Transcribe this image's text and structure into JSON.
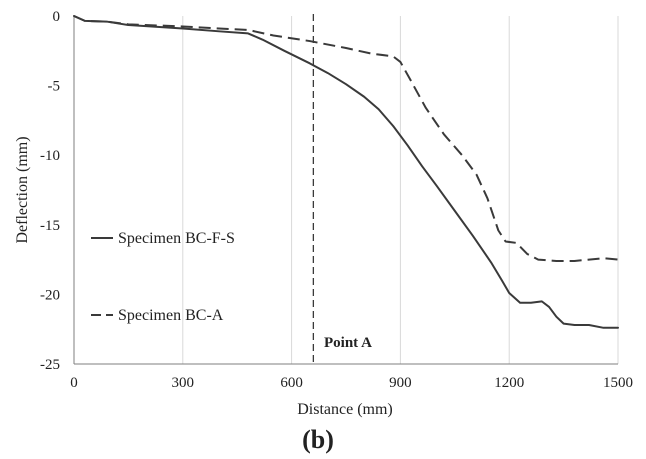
{
  "chart_data": {
    "type": "line",
    "xlabel": "Distance (mm)",
    "ylabel": "Deflection (mm)",
    "xlim": [
      0,
      1500
    ],
    "ylim": [
      -25,
      0
    ],
    "xticks": [
      0,
      300,
      600,
      900,
      1200,
      1500
    ],
    "yticks": [
      0,
      -5,
      -10,
      -15,
      -20,
      -25
    ],
    "x_tick_labels": [
      "0",
      "300",
      "600",
      "900",
      "1200",
      "1500"
    ],
    "y_tick_labels": [
      "0",
      "-5",
      "-10",
      "-15",
      "-20",
      "-25"
    ],
    "grid": "vertical",
    "legend_placement": "left",
    "series": [
      {
        "name": "Specimen BC-F-S",
        "style": "solid",
        "color": "#3a3a3a",
        "points": [
          [
            0,
            0
          ],
          [
            30,
            -0.35
          ],
          [
            90,
            -0.4
          ],
          [
            150,
            -0.65
          ],
          [
            300,
            -0.9
          ],
          [
            400,
            -1.1
          ],
          [
            480,
            -1.25
          ],
          [
            520,
            -1.7
          ],
          [
            580,
            -2.5
          ],
          [
            650,
            -3.4
          ],
          [
            700,
            -4.1
          ],
          [
            750,
            -4.9
          ],
          [
            800,
            -5.8
          ],
          [
            840,
            -6.7
          ],
          [
            880,
            -7.9
          ],
          [
            920,
            -9.3
          ],
          [
            960,
            -10.8
          ],
          [
            1000,
            -12.2
          ],
          [
            1050,
            -14.0
          ],
          [
            1100,
            -15.8
          ],
          [
            1150,
            -17.7
          ],
          [
            1180,
            -19.0
          ],
          [
            1200,
            -19.9
          ],
          [
            1230,
            -20.6
          ],
          [
            1260,
            -20.6
          ],
          [
            1290,
            -20.5
          ],
          [
            1310,
            -20.9
          ],
          [
            1330,
            -21.6
          ],
          [
            1350,
            -22.1
          ],
          [
            1380,
            -22.2
          ],
          [
            1420,
            -22.2
          ],
          [
            1460,
            -22.4
          ],
          [
            1500,
            -22.4
          ]
        ]
      },
      {
        "name": "Specimen BC-A",
        "style": "dashed",
        "color": "#3a3a3a",
        "points": [
          [
            0,
            0
          ],
          [
            30,
            -0.35
          ],
          [
            90,
            -0.4
          ],
          [
            150,
            -0.6
          ],
          [
            300,
            -0.75
          ],
          [
            400,
            -0.9
          ],
          [
            480,
            -1.0
          ],
          [
            550,
            -1.4
          ],
          [
            650,
            -1.8
          ],
          [
            750,
            -2.3
          ],
          [
            820,
            -2.7
          ],
          [
            880,
            -2.9
          ],
          [
            900,
            -3.3
          ],
          [
            930,
            -4.7
          ],
          [
            970,
            -6.6
          ],
          [
            1020,
            -8.5
          ],
          [
            1070,
            -10.0
          ],
          [
            1110,
            -11.4
          ],
          [
            1140,
            -13.1
          ],
          [
            1170,
            -15.4
          ],
          [
            1190,
            -16.2
          ],
          [
            1220,
            -16.3
          ],
          [
            1250,
            -17.1
          ],
          [
            1280,
            -17.5
          ],
          [
            1330,
            -17.6
          ],
          [
            1380,
            -17.6
          ],
          [
            1420,
            -17.5
          ],
          [
            1460,
            -17.4
          ],
          [
            1500,
            -17.5
          ]
        ]
      }
    ],
    "reference_line": {
      "x": 660,
      "style": "dashed",
      "label": "Point A"
    },
    "panel_label": "(b)"
  }
}
